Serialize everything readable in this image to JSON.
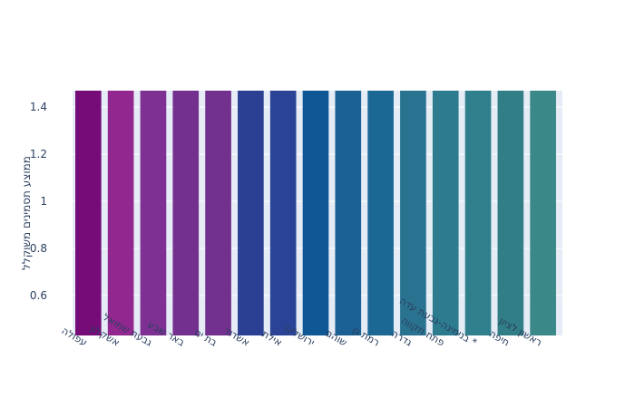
{
  "chart_data": {
    "type": "bar",
    "title": "",
    "xlabel": "",
    "ylabel": "ממוצע תסמינים משוקלל",
    "ylim": [
      0.43,
      1.47
    ],
    "yticks": [
      "0.6",
      "0.8",
      "1",
      "1.2",
      "1.4"
    ],
    "ytick_values": [
      0.6,
      0.8,
      1.0,
      1.2,
      1.4
    ],
    "grid": true,
    "plot_bg": "#e5ecf6",
    "categories": [
      "עפולה",
      "אשקלון",
      "גבעת שמואל",
      "באר שבע",
      "בת ים",
      "אשדוד",
      "אילת",
      "ירושלים",
      "שוהם",
      "רמת גן",
      "גדרה",
      "פתח תקווה",
      "* בנימינה-גבעת עדה",
      "חיפה",
      "ראשון לציון"
    ],
    "values": [
      1.47,
      1.47,
      1.47,
      1.47,
      1.47,
      1.47,
      1.47,
      1.47,
      1.47,
      1.47,
      1.47,
      1.47,
      1.47,
      1.47,
      1.47
    ],
    "colors": [
      "#750C77",
      "#92278F",
      "#7E3192",
      "#74308E",
      "#72308F",
      "#2B3F93",
      "#2A4397",
      "#0F5795",
      "#1C6193",
      "#1C6895",
      "#2A7390",
      "#2D7B8F",
      "#2F7F8C",
      "#317E87",
      "#3B8888"
    ]
  }
}
